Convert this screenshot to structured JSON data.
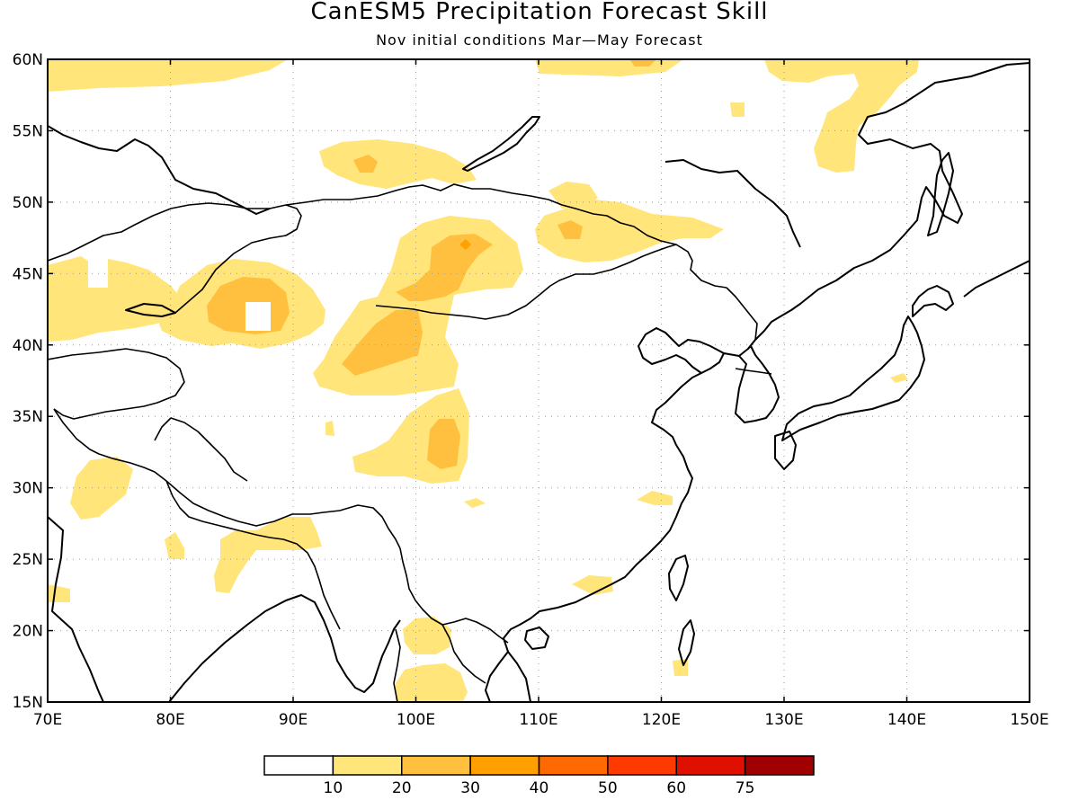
{
  "title": "CanESM5 Precipitation Forecast Skill",
  "subtitle": "Nov initial conditions  Mar—May Forecast",
  "map": {
    "lon_range": [
      70,
      150
    ],
    "lat_range": [
      15,
      60
    ],
    "lon_ticks": [
      "70E",
      "80E",
      "90E",
      "100E",
      "110E",
      "120E",
      "130E",
      "140E",
      "150E"
    ],
    "lat_ticks": [
      "15N",
      "20N",
      "25N",
      "30N",
      "35N",
      "40N",
      "45N",
      "50N",
      "55N",
      "60N"
    ],
    "grid": true
  },
  "colorbar": {
    "levels": [
      "10",
      "20",
      "30",
      "40",
      "50",
      "60",
      "75"
    ],
    "colors": [
      "#ffffff",
      "#ffe57a",
      "#ffc040",
      "#ffa000",
      "#ff6a00",
      "#ff3a00",
      "#e01000",
      "#a00000"
    ]
  }
}
